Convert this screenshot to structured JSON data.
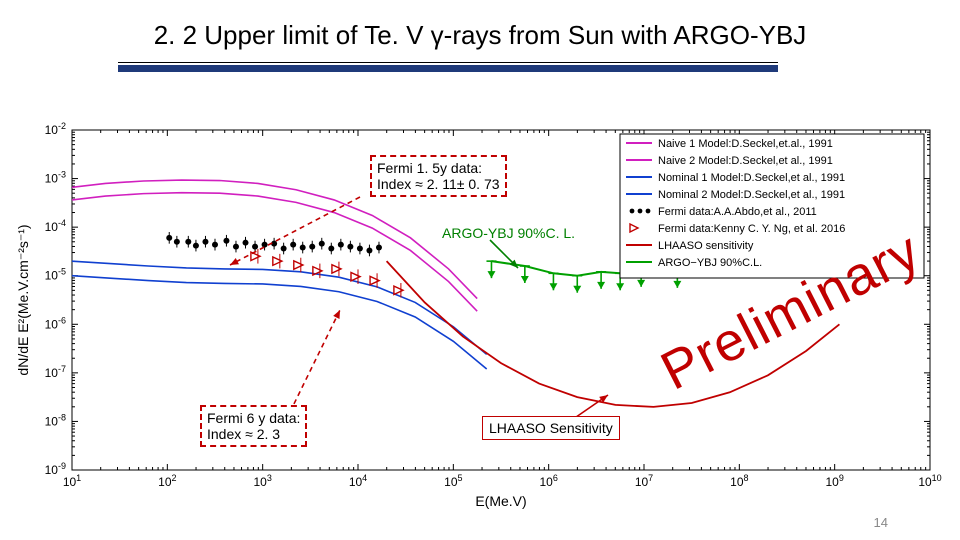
{
  "title": "2. 2 Upper limit of Te. V γ-rays from Sun with ARGO-YBJ",
  "page_number": "14",
  "watermark": "Preliminary",
  "annotations": {
    "fermi15": {
      "l1": "Fermi 1. 5y data:",
      "l2": "Index ≈ 2. 11± 0. 73"
    },
    "argo_label": "ARGO-YBJ 90%C. L.",
    "fermi6": {
      "l1": "Fermi 6 y data:",
      "l2": "Index ≈ 2. 3"
    },
    "lhaaso": "LHAASO Sensitivity"
  },
  "axes": {
    "xlabel": "E(Me.V)",
    "ylabel": "dN/dE E²(Me.V.cm⁻²s⁻¹)",
    "x_exp_min": 1,
    "x_exp_max": 10,
    "y_exp_min": -9,
    "y_exp_max": -2,
    "background": "#ffffff",
    "axis_color": "#000000",
    "tick_fontsize": 12,
    "label_fontsize": 14
  },
  "legend": {
    "box_border": "#000000",
    "entries": [
      {
        "label": "Naive 1 Model:D.Seckel,et.al., 1991",
        "color": "#d11fbf",
        "style": "line"
      },
      {
        "label": "Naive 2 Model:D.Seckel,et al., 1991",
        "color": "#d11fbf",
        "style": "line"
      },
      {
        "label": "Nominal 1 Model:D.Seckel,et al., 1991",
        "color": "#1040d0",
        "style": "line"
      },
      {
        "label": "Nominal 2 Model:D.Seckel,et al., 1991",
        "color": "#1040d0",
        "style": "line"
      },
      {
        "label": "Fermi data:A.A.Abdo,et al., 2011",
        "color": "#000000",
        "style": "dots"
      },
      {
        "label": "Fermi data:Kenny C. Y. Ng, et al. 2016",
        "color": "#c00000",
        "style": "tri"
      },
      {
        "label": "LHAASO sensitivity",
        "color": "#c00000",
        "style": "line"
      },
      {
        "label": "ARGO−YBJ 90%C.L.",
        "color": "#00a000",
        "style": "line"
      }
    ]
  },
  "curves": {
    "naive1": {
      "color": "#d11fbf",
      "width": 1.6,
      "pts": [
        [
          1.0,
          -3.18
        ],
        [
          1.35,
          -3.1
        ],
        [
          1.75,
          -3.05
        ],
        [
          2.15,
          -3.03
        ],
        [
          2.55,
          -3.04
        ],
        [
          2.95,
          -3.1
        ],
        [
          3.35,
          -3.23
        ],
        [
          3.75,
          -3.44
        ],
        [
          4.15,
          -3.76
        ],
        [
          4.55,
          -4.22
        ],
        [
          4.95,
          -4.86
        ],
        [
          5.25,
          -5.47
        ]
      ]
    },
    "naive2": {
      "color": "#d11fbf",
      "width": 1.6,
      "pts": [
        [
          1.0,
          -3.44
        ],
        [
          1.35,
          -3.36
        ],
        [
          1.75,
          -3.31
        ],
        [
          2.15,
          -3.29
        ],
        [
          2.55,
          -3.3
        ],
        [
          2.95,
          -3.36
        ],
        [
          3.35,
          -3.49
        ],
        [
          3.75,
          -3.7
        ],
        [
          4.15,
          -4.02
        ],
        [
          4.55,
          -4.48
        ],
        [
          4.95,
          -5.12
        ],
        [
          5.25,
          -5.73
        ]
      ]
    },
    "nominal1": {
      "color": "#1040d0",
      "width": 1.6,
      "pts": [
        [
          1.0,
          -4.7
        ],
        [
          1.4,
          -4.75
        ],
        [
          1.8,
          -4.8
        ],
        [
          2.2,
          -4.84
        ],
        [
          2.6,
          -4.86
        ],
        [
          3.0,
          -4.87
        ],
        [
          3.4,
          -4.92
        ],
        [
          3.8,
          -5.03
        ],
        [
          4.2,
          -5.23
        ],
        [
          4.6,
          -5.55
        ],
        [
          5.0,
          -6.05
        ],
        [
          5.35,
          -6.62
        ]
      ]
    },
    "nominal2": {
      "color": "#1040d0",
      "width": 1.6,
      "pts": [
        [
          1.0,
          -5.0
        ],
        [
          1.4,
          -5.05
        ],
        [
          1.8,
          -5.1
        ],
        [
          2.2,
          -5.14
        ],
        [
          2.6,
          -5.16
        ],
        [
          3.0,
          -5.17
        ],
        [
          3.4,
          -5.22
        ],
        [
          3.8,
          -5.33
        ],
        [
          4.2,
          -5.53
        ],
        [
          4.6,
          -5.85
        ],
        [
          5.0,
          -6.35
        ],
        [
          5.35,
          -6.92
        ]
      ]
    },
    "lhaaso": {
      "color": "#c00000",
      "width": 1.8,
      "pts": [
        [
          4.3,
          -4.7
        ],
        [
          4.7,
          -5.55
        ],
        [
          5.1,
          -6.25
        ],
        [
          5.5,
          -6.8
        ],
        [
          5.9,
          -7.22
        ],
        [
          6.3,
          -7.5
        ],
        [
          6.7,
          -7.66
        ],
        [
          7.1,
          -7.7
        ],
        [
          7.5,
          -7.62
        ],
        [
          7.9,
          -7.4
        ],
        [
          8.3,
          -7.05
        ],
        [
          8.7,
          -6.55
        ],
        [
          9.05,
          -6.0
        ]
      ]
    },
    "argo": {
      "color": "#00a000",
      "width": 2.0,
      "pts": [
        [
          5.4,
          -4.7
        ],
        [
          5.75,
          -4.8
        ],
        [
          6.05,
          -4.95
        ],
        [
          6.3,
          -5.0
        ],
        [
          6.55,
          -4.92
        ],
        [
          6.75,
          -4.95
        ],
        [
          6.97,
          -4.88
        ],
        [
          7.2,
          -4.7
        ],
        [
          7.35,
          -4.9
        ]
      ]
    }
  },
  "argo_arrows": {
    "color": "#00a000",
    "x": [
      5.4,
      5.75,
      6.05,
      6.3,
      6.55,
      6.75,
      6.97,
      7.2,
      7.35
    ],
    "y": [
      -4.7,
      -4.8,
      -4.95,
      -5.0,
      -4.92,
      -4.95,
      -4.88,
      -4.7,
      -4.9
    ],
    "dy": -0.35
  },
  "fermi_dots": {
    "color": "#000000",
    "r": 3,
    "pts": [
      [
        2.02,
        -4.22
      ],
      [
        2.1,
        -4.3
      ],
      [
        2.22,
        -4.3
      ],
      [
        2.3,
        -4.38
      ],
      [
        2.4,
        -4.3
      ],
      [
        2.5,
        -4.36
      ],
      [
        2.62,
        -4.28
      ],
      [
        2.72,
        -4.4
      ],
      [
        2.82,
        -4.32
      ],
      [
        2.92,
        -4.4
      ],
      [
        3.02,
        -4.36
      ],
      [
        3.12,
        -4.34
      ],
      [
        3.22,
        -4.44
      ],
      [
        3.32,
        -4.36
      ],
      [
        3.42,
        -4.42
      ],
      [
        3.52,
        -4.4
      ],
      [
        3.62,
        -4.34
      ],
      [
        3.72,
        -4.44
      ],
      [
        3.82,
        -4.36
      ],
      [
        3.92,
        -4.4
      ],
      [
        4.02,
        -4.44
      ],
      [
        4.12,
        -4.48
      ],
      [
        4.22,
        -4.42
      ]
    ],
    "err": 0.12
  },
  "fermi_tri": {
    "color": "#c00000",
    "size": 7,
    "pts": [
      [
        2.95,
        -4.6
      ],
      [
        3.18,
        -4.7
      ],
      [
        3.4,
        -4.78
      ],
      [
        3.6,
        -4.9
      ],
      [
        3.8,
        -4.86
      ],
      [
        4.0,
        -5.02
      ],
      [
        4.2,
        -5.1
      ],
      [
        4.45,
        -5.3
      ]
    ],
    "err": 0.15
  },
  "callouts": {
    "fermi15_arrow": {
      "color": "#c00000",
      "from": [
        370,
        194
      ],
      "to": [
        258,
        258
      ]
    },
    "argo_arrow": {
      "color": "#008000",
      "from": [
        500,
        237
      ],
      "to": [
        528,
        262
      ]
    },
    "fermi6_arrow": {
      "color": "#c00000",
      "from": [
        300,
        404
      ],
      "to": [
        356,
        298
      ]
    },
    "lhaaso_arrow": {
      "color": "#c00000",
      "from": [
        578,
        416
      ],
      "to": [
        620,
        390
      ]
    }
  }
}
